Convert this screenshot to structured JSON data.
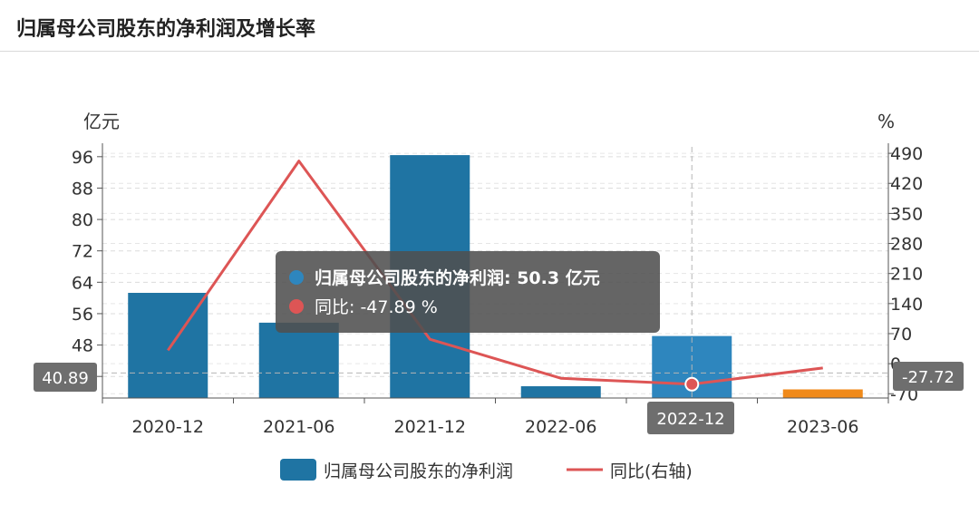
{
  "page": {
    "title": "归属母公司股东的净利润及增长率"
  },
  "chart_data": {
    "type": "bar",
    "categories": [
      "2020-12",
      "2021-06",
      "2021-12",
      "2022-06",
      "2022-12",
      "2023-06"
    ],
    "series": [
      {
        "name": "归属母公司股东的净利润",
        "kind": "bar",
        "axis": "left",
        "unit": "亿元",
        "values": [
          61.3,
          53.7,
          96.4,
          37.5,
          50.3,
          36.7
        ],
        "colors": [
          "#1f74a3",
          "#1f74a3",
          "#1f74a3",
          "#1f74a3",
          "#2e86be",
          "#f08a1a"
        ]
      },
      {
        "name": "同比(右轴)",
        "kind": "line",
        "axis": "right",
        "unit": "%",
        "color": "#dd5555",
        "values": [
          31.0,
          472.0,
          57.0,
          -34.0,
          -47.89,
          -10.0
        ]
      }
    ],
    "y_left": {
      "unit": "亿元",
      "ticks": [
        40,
        48,
        56,
        64,
        72,
        80,
        88,
        96
      ],
      "range": [
        34.5,
        98.5
      ]
    },
    "y_right": {
      "unit": "%",
      "ticks": [
        -70,
        0,
        70,
        140,
        210,
        280,
        350,
        420,
        490
      ],
      "range": [
        -80,
        505
      ]
    },
    "crosshair": {
      "category": "2022-12",
      "left_value": "40.89",
      "right_value": "-27.72"
    },
    "tooltip": {
      "row1_name": "归属母公司股东的净利润:",
      "row1_value": "50.3",
      "row1_unit": "亿元",
      "row2_name": "同比:",
      "row2_value": "-47.89",
      "row2_unit": "%"
    },
    "legend": {
      "bar_label": "归属母公司股东的净利润",
      "line_label": "同比(右轴)",
      "position": "bottom"
    }
  }
}
